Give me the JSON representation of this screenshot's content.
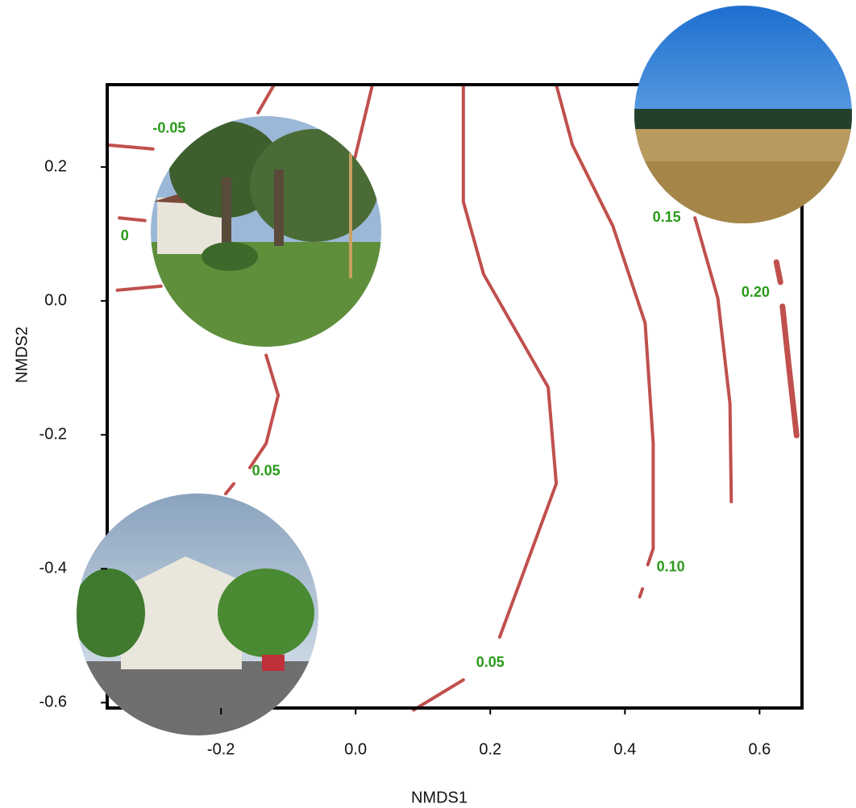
{
  "chart_data": {
    "type": "contour",
    "x_label": "NMDS1",
    "y_label": "NMDS2",
    "xlim": [
      -0.369,
      0.663
    ],
    "ylim": [
      -0.608,
      0.323
    ],
    "xticks": [
      -0.2,
      {
        "value": 0,
        "label": "0.0"
      },
      0.2,
      0.4,
      0.6
    ],
    "yticks": [
      -0.6,
      -0.4,
      -0.2,
      {
        "value": 0,
        "label": "0.0"
      },
      0.2
    ],
    "color": "#c0504d",
    "label_color": "#2a9a1a",
    "contours": [
      {
        "level": -0.05,
        "lines": [
          {
            "x": [
              -0.369,
              -0.301
            ],
            "y": [
              0.233,
              0.227
            ]
          },
          {
            "x": [
              -0.121,
              -0.145
            ],
            "y": [
              0.323,
              0.281
            ]
          }
        ]
      },
      {
        "level": 0,
        "lines": [
          {
            "x": [
              -0.351,
              -0.313
            ],
            "y": [
              0.124,
              0.12
            ]
          },
          {
            "x": [
              -0.001,
              0.025
            ],
            "y": [
              0.214,
              0.323
            ]
          }
        ]
      },
      {
        "level": 0.05,
        "lines": [
          {
            "x": [
              -0.354,
              -0.289
            ],
            "y": [
              0.016,
              0.022
            ]
          },
          {
            "x": [
              -0.133,
              -0.115,
              -0.133,
              -0.157
            ],
            "y": [
              -0.081,
              -0.141,
              -0.213,
              -0.249
            ]
          },
          {
            "x": [
              -0.181,
              -0.193
            ],
            "y": [
              -0.273,
              -0.288
            ]
          },
          {
            "x": [
              0.086,
              0.16
            ],
            "y": [
              -0.611,
              -0.566
            ]
          },
          {
            "x": [
              0.214,
              0.298,
              0.286,
              0.19,
              0.16,
              0.16
            ],
            "y": [
              -0.502,
              -0.273,
              -0.129,
              0.04,
              0.148,
              0.323
            ]
          }
        ]
      },
      {
        "level": 0.1,
        "label": "0.10",
        "lines": [
          {
            "x": [
              0.298,
              0.322,
              0.382,
              0.43,
              0.442,
              0.442,
              0.434
            ],
            "y": [
              0.323,
              0.233,
              0.112,
              -0.033,
              -0.213,
              -0.37,
              -0.394
            ]
          },
          {
            "x": [
              0.426,
              0.422
            ],
            "y": [
              -0.43,
              -0.442
            ]
          }
        ]
      },
      {
        "level": 0.15,
        "lines": [
          {
            "x": [
              0.504,
              0.538,
              0.556,
              0.558
            ],
            "y": [
              0.124,
              0.004,
              -0.153,
              -0.3
            ]
          }
        ]
      },
      {
        "level": 0.2,
        "label": "0.20",
        "lines": [
          {
            "x": [
              0.625,
              0.631
            ],
            "y": [
              0.058,
              0.028
            ]
          },
          {
            "x": [
              0.634,
              0.643,
              0.655
            ],
            "y": [
              -0.008,
              -0.093,
              -0.201
            ]
          }
        ]
      }
    ],
    "contour_labels": [
      {
        "contour": 0,
        "x": -0.277,
        "y": 0.257
      },
      {
        "contour": 1,
        "x": -0.343,
        "y": 0.096
      },
      {
        "contour": 2,
        "x": -0.133,
        "y": -0.255
      },
      {
        "contour": 2,
        "x": 0.2,
        "y": -0.541
      },
      {
        "contour": 3,
        "x": 0.468,
        "y": -0.398
      },
      {
        "contour": 4,
        "x": 0.462,
        "y": 0.124
      },
      {
        "contour": 5,
        "x": 0.594,
        "y": 0.012
      }
    ]
  }
}
